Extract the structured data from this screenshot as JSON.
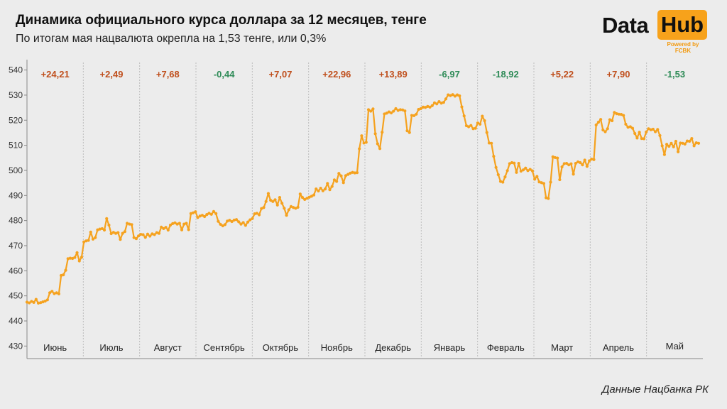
{
  "header": {
    "title": "Динамика официального курса доллара за 12 месяцев, тенге",
    "subtitle": "По итогам мая нацвалюта окрепла на 1,53 тенге, или 0,3%"
  },
  "logo": {
    "data": "Data",
    "hub": "Hub",
    "powered": "Powered by FCBK"
  },
  "source": "Данные Нацбанка РК",
  "colors": {
    "line": "#f5a21f",
    "up": "#c0501e",
    "down": "#2e8b57",
    "grid": "#bdbdbd"
  },
  "chart_data": {
    "type": "line",
    "title": "Динамика официального курса доллара за 12 месяцев, тенге",
    "ylim": [
      425,
      543
    ],
    "yticks": [
      430,
      440,
      450,
      460,
      470,
      480,
      490,
      500,
      510,
      520,
      530,
      540
    ],
    "months": [
      "Июнь",
      "Июль",
      "Август",
      "Сентябрь",
      "Октябрь",
      "Ноябрь",
      "Декабрь",
      "Январь",
      "Февраль",
      "Март",
      "Апрель",
      "Май"
    ],
    "changes": [
      "+24,21",
      "+2,49",
      "+7,68",
      "-0,44",
      "+7,07",
      "+22,96",
      "+13,89",
      "-6,97",
      "-18,92",
      "+5,22",
      "+7,90",
      "-1,53"
    ],
    "change_directions": [
      "up",
      "up",
      "up",
      "down",
      "up",
      "up",
      "up",
      "down",
      "down",
      "up",
      "up",
      "down"
    ],
    "series": [
      {
        "name": "USD/KZT",
        "values": [
          447.5,
          447.2,
          447.8,
          447.4,
          448.6,
          447.1,
          447.3,
          447.6,
          447.9,
          448.4,
          451.2,
          451.8,
          450.9,
          451.2,
          450.8,
          458.1,
          458.4,
          460.2,
          464.8,
          465.0,
          464.9,
          465.3,
          467.2,
          463.9,
          465.4,
          471.5,
          471.9,
          472.1,
          475.4,
          472.6,
          473.2,
          476.3,
          476.6,
          476.8,
          476.2,
          480.8,
          478.2,
          474.8,
          475.3,
          474.9,
          475.2,
          472.5,
          474.9,
          475.6,
          478.9,
          478.6,
          478.4,
          473.2,
          472.8,
          473.9,
          474.5,
          474.4,
          473.3,
          474.6,
          473.8,
          474.7,
          474.4,
          475.2,
          474.9,
          477.4,
          476.8,
          477.3,
          476.2,
          478.2,
          478.8,
          479.1,
          478.6,
          478.9,
          476.3,
          478.6,
          478.9,
          476.4,
          482.8,
          483.1,
          483.5,
          481.2,
          481.8,
          482.1,
          481.6,
          482.4,
          482.9,
          482.5,
          483.6,
          482.8,
          479.7,
          478.5,
          477.9,
          478.4,
          479.8,
          480.1,
          479.6,
          480.2,
          480.4,
          479.5,
          478.6,
          479.2,
          478.1,
          479.4,
          480.3,
          480.8,
          482.7,
          482.9,
          482.3,
          484.8,
          485.2,
          487.6,
          490.8,
          488.1,
          487.6,
          488.3,
          486.2,
          489.2,
          486.9,
          484.9,
          482.1,
          484.3,
          485.6,
          485.2,
          484.9,
          485.3,
          490.6,
          489.2,
          488.4,
          488.9,
          489.3,
          489.7,
          490.2,
          492.6,
          491.8,
          492.9,
          491.9,
          492.6,
          494.8,
          492.3,
          493.6,
          496.2,
          495.6,
          498.8,
          497.8,
          495.1,
          497.9,
          498.4,
          498.9,
          499.2,
          499.0,
          499.1,
          508.6,
          513.8,
          510.9,
          511.2,
          524.2,
          523.6,
          524.5,
          514.6,
          510.6,
          508.7,
          515.2,
          522.5,
          522.8,
          523.3,
          522.9,
          523.6,
          524.6,
          523.9,
          524.2,
          524.1,
          523.7,
          515.8,
          515.1,
          521.9,
          521.8,
          522.4,
          524.3,
          524.6,
          525.2,
          525.1,
          525.5,
          525.2,
          525.8,
          526.9,
          526.5,
          527.4,
          526.8,
          527.1,
          528.5,
          530.1,
          529.8,
          530.2,
          529.6,
          530.1,
          529.7,
          525.3,
          521.7,
          517.8,
          517.4,
          517.9,
          516.6,
          516.8,
          518.9,
          518.4,
          521.6,
          519.8,
          515.1,
          510.9,
          510.8,
          505.6,
          501.2,
          498.3,
          495.6,
          495.3,
          497.4,
          499.9,
          502.7,
          503.1,
          502.9,
          499.2,
          502.8,
          499.7,
          500.2,
          500.9,
          499.9,
          500.4,
          499.8,
          496.5,
          497.6,
          495.4,
          495.1,
          494.8,
          489.1,
          488.8,
          495.3,
          505.4,
          505.1,
          504.9,
          496.3,
          501.4,
          502.7,
          502.8,
          502.2,
          502.6,
          498.5,
          502.8,
          503.4,
          503.1,
          502.2,
          504.1,
          501.6,
          503.8,
          504.5,
          504.3,
          518.1,
          519.2,
          520.3,
          516.1,
          515.4,
          516.6,
          520.2,
          519.8,
          523.1,
          522.6,
          522.4,
          522.3,
          521.9,
          518.4,
          517.2,
          517.4,
          516.8,
          514.7,
          512.9,
          515.2,
          512.7,
          512.6,
          515.3,
          516.6,
          516.2,
          516.4,
          515.4,
          516.3,
          513.9,
          509.8,
          506.3,
          510.4,
          509.6,
          510.8,
          509.4,
          511.6,
          507.4,
          510.9,
          510.8,
          510.5,
          511.7,
          511.6,
          512.7,
          509.8,
          511.0,
          510.8
        ]
      }
    ]
  }
}
